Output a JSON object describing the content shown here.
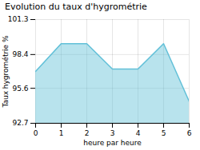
{
  "chart_data": {
    "type": "area",
    "title": "Evolution du taux d'hygrométrie",
    "xlabel": "heure par heure",
    "ylabel": "Taux hygrométrie %",
    "x": [
      0,
      1,
      2,
      3,
      4,
      5,
      6
    ],
    "values": [
      97.0,
      99.3,
      99.3,
      97.2,
      97.2,
      99.3,
      94.5
    ],
    "color": "#62c0d8",
    "xlim": [
      0,
      6
    ],
    "ylim": [
      92.7,
      101.3
    ],
    "xticks": [
      0,
      1,
      2,
      3,
      4,
      5,
      6
    ],
    "yticks": [
      92.7,
      95.6,
      98.4,
      101.3
    ],
    "grid": true
  }
}
